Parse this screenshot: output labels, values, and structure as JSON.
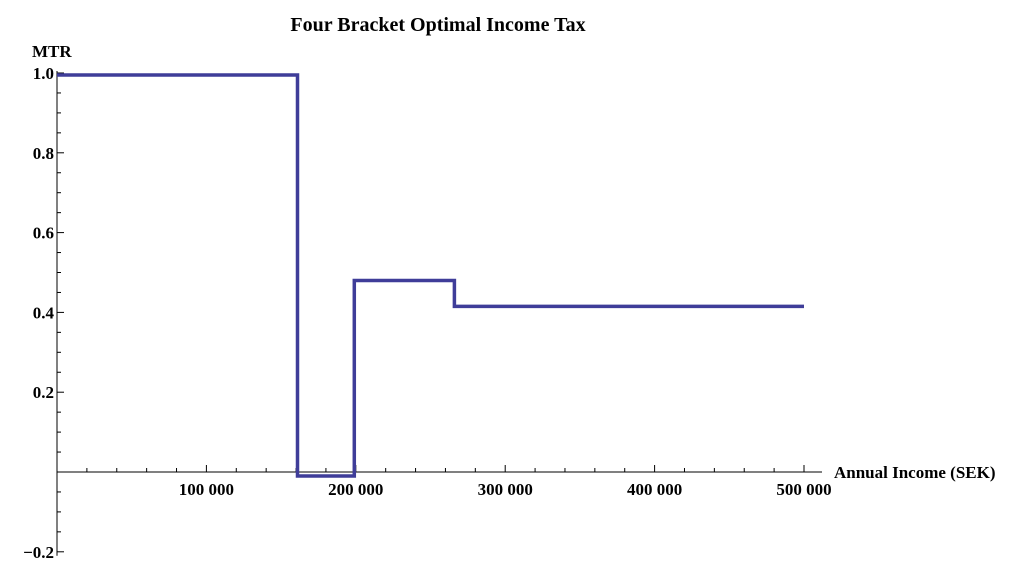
{
  "chart_data": {
    "type": "line",
    "title": "Four Bracket Optimal Income Tax",
    "xlabel": "Annual Income (SEK)",
    "ylabel": "MTR",
    "xlim": [
      0,
      500000
    ],
    "ylim": [
      -0.2,
      1.0
    ],
    "x_ticks": [
      100000,
      200000,
      300000,
      400000,
      500000
    ],
    "x_tick_labels": [
      "100 000",
      "200 000",
      "300 000",
      "400 000",
      "500 000"
    ],
    "y_ticks": [
      -0.2,
      0.2,
      0.4,
      0.6,
      0.8,
      1.0
    ],
    "y_tick_labels": [
      "−0.2",
      "0.2",
      "0.4",
      "0.6",
      "0.8",
      "1.0"
    ],
    "grid": false,
    "step": true,
    "color": "#3f3d99",
    "series": [
      {
        "x": [
          0,
          161000,
          161000,
          199000,
          199000,
          266000,
          266000,
          500000
        ],
        "y": [
          0.995,
          0.995,
          -0.01,
          -0.01,
          0.48,
          0.48,
          0.415,
          0.415
        ]
      }
    ]
  }
}
